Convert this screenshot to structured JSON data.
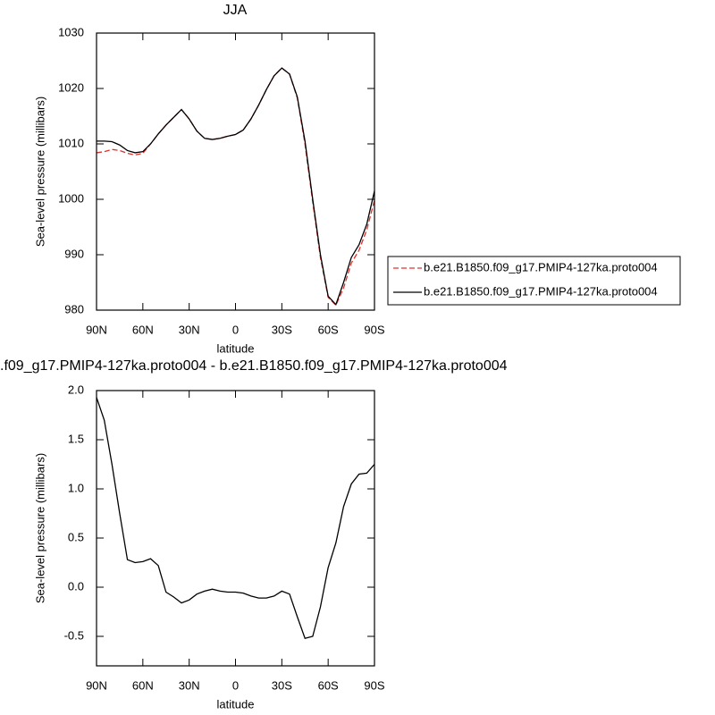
{
  "chart_data": [
    {
      "type": "line",
      "title": "JJA",
      "xlabel": "latitude",
      "ylabel": "Sea-level pressure (millibars)",
      "x": [
        90,
        85,
        80,
        75,
        70,
        65,
        60,
        55,
        50,
        45,
        40,
        35,
        30,
        25,
        20,
        15,
        10,
        5,
        0,
        -5,
        -10,
        -15,
        -20,
        -25,
        -30,
        -35,
        -40,
        -45,
        -50,
        -55,
        -60,
        -65,
        -70,
        -75,
        -80,
        -85,
        -90
      ],
      "series": [
        {
          "name": "b.e21.B1850.f09_g17.PMIP4-127ka.proto004",
          "color": "#e0302c",
          "dash": true,
          "values": [
            1008.4,
            1008.6,
            1009.0,
            1008.8,
            1008.3,
            1008.0,
            1008.3,
            1010.0,
            1011.8,
            1013.4,
            1014.8,
            1016.2,
            1014.5,
            1012.3,
            1011.0,
            1010.8,
            1011.0,
            1011.4,
            1011.7,
            1012.5,
            1014.5,
            1017.0,
            1019.8,
            1022.3,
            1023.7,
            1022.6,
            1018.3,
            1010.0,
            999.5,
            989.5,
            982.3,
            980.9,
            984.0,
            988.5,
            990.8,
            994.5,
            999.8
          ]
        },
        {
          "name": "b.e21.B1850.f09_g17.PMIP4-127ka.proto004",
          "color": "#000000",
          "dash": false,
          "values": [
            1010.5,
            1010.5,
            1010.4,
            1009.8,
            1008.8,
            1008.4,
            1008.6,
            1010.0,
            1011.8,
            1013.4,
            1014.8,
            1016.2,
            1014.5,
            1012.3,
            1011.0,
            1010.8,
            1011.0,
            1011.4,
            1011.7,
            1012.5,
            1014.5,
            1017.0,
            1019.8,
            1022.3,
            1023.7,
            1022.6,
            1018.5,
            1010.5,
            1000.0,
            990.0,
            982.5,
            981.0,
            985.0,
            989.5,
            991.8,
            995.5,
            1001.5
          ]
        }
      ],
      "xlim": [
        90,
        -90
      ],
      "xticks": [
        {
          "value": 90,
          "label": "90N"
        },
        {
          "value": 60,
          "label": "60N"
        },
        {
          "value": 30,
          "label": "30N"
        },
        0,
        {
          "value": -30,
          "label": "30S"
        },
        {
          "value": -60,
          "label": "60S"
        },
        {
          "value": -90,
          "label": "90S"
        }
      ],
      "ylim": [
        980,
        1030
      ],
      "yticks": [
        980,
        990,
        1000,
        1010,
        1020,
        1030
      ],
      "legend": "right"
    },
    {
      "type": "line",
      "title": ".f09_g17.PMIP4-127ka.proto004 - b.e21.B1850.f09_g17.PMIP4-127ka.proto004",
      "xlabel": "latitude",
      "ylabel": "Sea-level pressure (millibars)",
      "x": [
        90,
        85,
        80,
        75,
        70,
        65,
        60,
        55,
        50,
        45,
        40,
        35,
        30,
        25,
        20,
        15,
        10,
        5,
        0,
        -5,
        -10,
        -15,
        -20,
        -25,
        -30,
        -35,
        -40,
        -45,
        -50,
        -55,
        -60,
        -65,
        -70,
        -75,
        -80,
        -85,
        -90
      ],
      "series": [
        {
          "color": "#000000",
          "dash": false,
          "values": [
            1.93,
            1.7,
            1.25,
            0.75,
            0.28,
            0.25,
            0.26,
            0.29,
            0.22,
            -0.05,
            -0.1,
            -0.16,
            -0.13,
            -0.07,
            -0.04,
            -0.02,
            -0.04,
            -0.05,
            -0.05,
            -0.06,
            -0.09,
            -0.11,
            -0.11,
            -0.09,
            -0.04,
            -0.07,
            -0.3,
            -0.52,
            -0.5,
            -0.2,
            0.2,
            0.45,
            0.82,
            1.05,
            1.15,
            1.16,
            1.25
          ]
        }
      ],
      "xlim": [
        90,
        -90
      ],
      "xticks": [
        {
          "value": 90,
          "label": "90N"
        },
        {
          "value": 60,
          "label": "60N"
        },
        {
          "value": 30,
          "label": "30N"
        },
        0,
        {
          "value": -30,
          "label": "30S"
        },
        {
          "value": -60,
          "label": "60S"
        },
        {
          "value": -90,
          "label": "90S"
        }
      ],
      "ylim": [
        -0.8,
        2.0
      ],
      "yticks": [
        {
          "value": -0.5,
          "label": "-0.5"
        },
        {
          "value": 0,
          "label": "0.0"
        },
        {
          "value": 0.5,
          "label": "0.5"
        },
        {
          "value": 1,
          "label": "1.0"
        },
        {
          "value": 1.5,
          "label": "1.5"
        },
        {
          "value": 2,
          "label": "2.0"
        }
      ]
    }
  ]
}
